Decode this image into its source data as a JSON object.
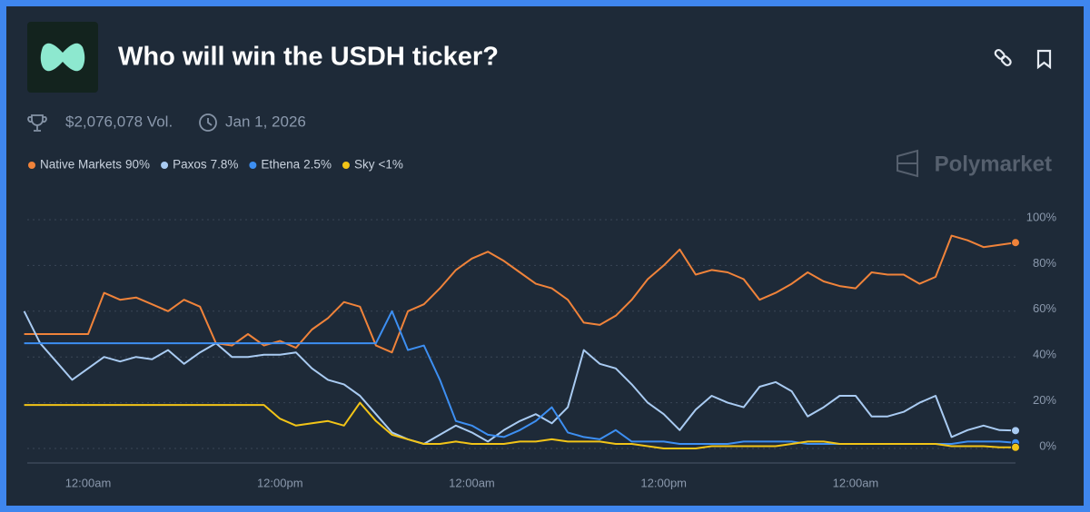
{
  "header": {
    "title": "Who will win the USDH ticker?",
    "volume": "$2,076,078 Vol.",
    "end_date": "Jan 1, 2026",
    "brand": "Polymarket"
  },
  "chart_data": {
    "type": "line",
    "categories": [
      null,
      null,
      null,
      null,
      "12:00am",
      null,
      null,
      null,
      null,
      null,
      null,
      null,
      null,
      null,
      null,
      null,
      "12:00pm",
      null,
      null,
      null,
      null,
      null,
      null,
      null,
      null,
      null,
      null,
      null,
      "12:00am",
      null,
      null,
      null,
      null,
      null,
      null,
      null,
      null,
      null,
      null,
      null,
      "12:00pm",
      null,
      null,
      null,
      null,
      null,
      null,
      null,
      null,
      null,
      null,
      null,
      "12:00am",
      null,
      null,
      null,
      null,
      null,
      null,
      null,
      null,
      null,
      null
    ],
    "series": [
      {
        "name": "Native Markets",
        "legend_value": "90%",
        "color": "#f0833a",
        "values": [
          50,
          50,
          50,
          50,
          50,
          68,
          65,
          66,
          63,
          60,
          65,
          62,
          46,
          45,
          50,
          45,
          47,
          44,
          52,
          57,
          64,
          62,
          45,
          42,
          60,
          63,
          70,
          78,
          83,
          86,
          82,
          77,
          72,
          70,
          65,
          55,
          54,
          58,
          65,
          74,
          80,
          87,
          76,
          78,
          77,
          74,
          65,
          68,
          72,
          77,
          73,
          71,
          70,
          77,
          76,
          76,
          72,
          75,
          93,
          91,
          88,
          89,
          90
        ]
      },
      {
        "name": "Paxos",
        "legend_value": "7.8%",
        "color": "#a9cbf2",
        "values": [
          60,
          46,
          38,
          30,
          35,
          40,
          38,
          40,
          39,
          43,
          37,
          42,
          46,
          40,
          40,
          41,
          41,
          42,
          35,
          30,
          28,
          23,
          15,
          7,
          4,
          2,
          6,
          10,
          7,
          3,
          8,
          12,
          15,
          11,
          18,
          43,
          37,
          35,
          28,
          20,
          15,
          8,
          17,
          23,
          20,
          18,
          27,
          29,
          25,
          14,
          18,
          23,
          23,
          14,
          14,
          16,
          20,
          23,
          5,
          8,
          10,
          8,
          7.8
        ]
      },
      {
        "name": "Ethena",
        "legend_value": "2.5%",
        "color": "#3d8ff2",
        "values": [
          46,
          46,
          46,
          46,
          46,
          46,
          46,
          46,
          46,
          46,
          46,
          46,
          46,
          46,
          46,
          46,
          46,
          46,
          46,
          46,
          46,
          46,
          46,
          60,
          43,
          45,
          30,
          12,
          10,
          6,
          5,
          8,
          12,
          18,
          7,
          5,
          4,
          8,
          3,
          3,
          3,
          2,
          2,
          2,
          2,
          3,
          3,
          3,
          3,
          2,
          2,
          2,
          2,
          2,
          2,
          2,
          2,
          2,
          2,
          3,
          3,
          3,
          2.5
        ]
      },
      {
        "name": "Sky",
        "legend_value": "<1%",
        "color": "#f2c417",
        "values": [
          19,
          19,
          19,
          19,
          19,
          19,
          19,
          19,
          19,
          19,
          19,
          19,
          19,
          19,
          19,
          19,
          13,
          10,
          11,
          12,
          10,
          20,
          12,
          6,
          4,
          2,
          2,
          3,
          2,
          2,
          2,
          3,
          3,
          4,
          3,
          3,
          3,
          2,
          2,
          1,
          0,
          0,
          0,
          1,
          1,
          1,
          1,
          1,
          2,
          3,
          3,
          2,
          2,
          2,
          2,
          2,
          2,
          2,
          1,
          1,
          1,
          0.5,
          0.5
        ]
      }
    ],
    "ylim": [
      0,
      100
    ],
    "yticks": [
      {
        "value": 0,
        "label": "0%"
      },
      {
        "value": 20,
        "label": "20%"
      },
      {
        "value": 40,
        "label": "40%"
      },
      {
        "value": 60,
        "label": "60%"
      },
      {
        "value": 80,
        "label": "80%"
      },
      {
        "value": 100,
        "label": "100%"
      }
    ],
    "grid": true
  }
}
